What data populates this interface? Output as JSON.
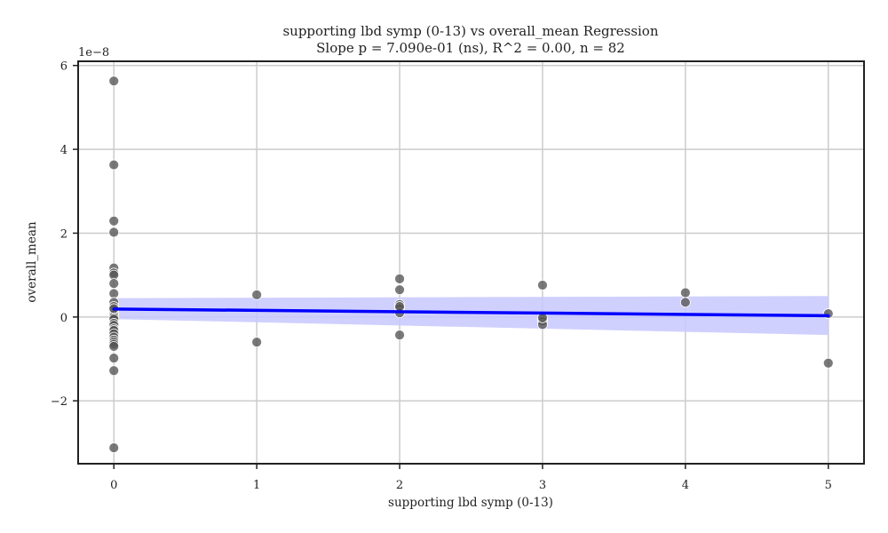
{
  "chart_data": {
    "type": "scatter",
    "title": "supporting lbd symp (0-13) vs overall_mean Regression",
    "subtitle": "Slope p = 7.090e-01 (ns), R^2 = 0.00, n = 82",
    "xlabel": "supporting lbd symp (0-13)",
    "ylabel": "overall_mean",
    "y_offset_label": "1e−8",
    "xlim": [
      -0.25,
      5.25
    ],
    "ylim": [
      -3.5,
      6.1
    ],
    "x_ticks": [
      0,
      1,
      2,
      3,
      4,
      5
    ],
    "y_ticks": [
      -2,
      0,
      2,
      4,
      6
    ],
    "x_tick_labels": [
      "0",
      "1",
      "2",
      "3",
      "4",
      "5"
    ],
    "y_tick_labels": [
      "−2",
      "0",
      "2",
      "4",
      "6"
    ],
    "grid": true,
    "colors": {
      "points": "#555555",
      "line": "#0000ff",
      "ci_band": "#c8c8ff",
      "grid": "#cccccc",
      "axes": "#222222"
    },
    "series": [
      {
        "kind": "points",
        "x": [
          0,
          0,
          0,
          0,
          0,
          0,
          0,
          0,
          0,
          0,
          0,
          0,
          0,
          0,
          0,
          0,
          0,
          0,
          0,
          0,
          0,
          0,
          0,
          0,
          0,
          0,
          0,
          0,
          0,
          0,
          1,
          1,
          2,
          2,
          2,
          2,
          2,
          2,
          2,
          3,
          3,
          3,
          3,
          3,
          4,
          4,
          5,
          5
        ],
        "y": [
          5.63,
          3.63,
          2.29,
          2.02,
          1.17,
          1.05,
          1.0,
          0.8,
          0.56,
          0.35,
          0.25,
          0.18,
          0.1,
          0.05,
          0.0,
          -0.05,
          -0.15,
          -0.2,
          -0.28,
          -0.32,
          -0.4,
          -0.48,
          -0.55,
          -0.6,
          -0.65,
          -0.7,
          -0.98,
          -1.28,
          -3.12,
          0.2,
          0.53,
          -0.6,
          0.91,
          0.65,
          0.3,
          0.2,
          0.1,
          -0.43,
          0.25,
          0.76,
          -0.05,
          -0.1,
          -0.18,
          -0.02,
          0.58,
          0.35,
          0.08,
          -1.1
        ]
      },
      {
        "kind": "regression_line",
        "x": [
          0,
          5
        ],
        "y": [
          0.19,
          0.03
        ],
        "ci_upper": [
          0.45,
          0.5
        ],
        "ci_lower": [
          -0.05,
          -0.43
        ]
      }
    ]
  }
}
